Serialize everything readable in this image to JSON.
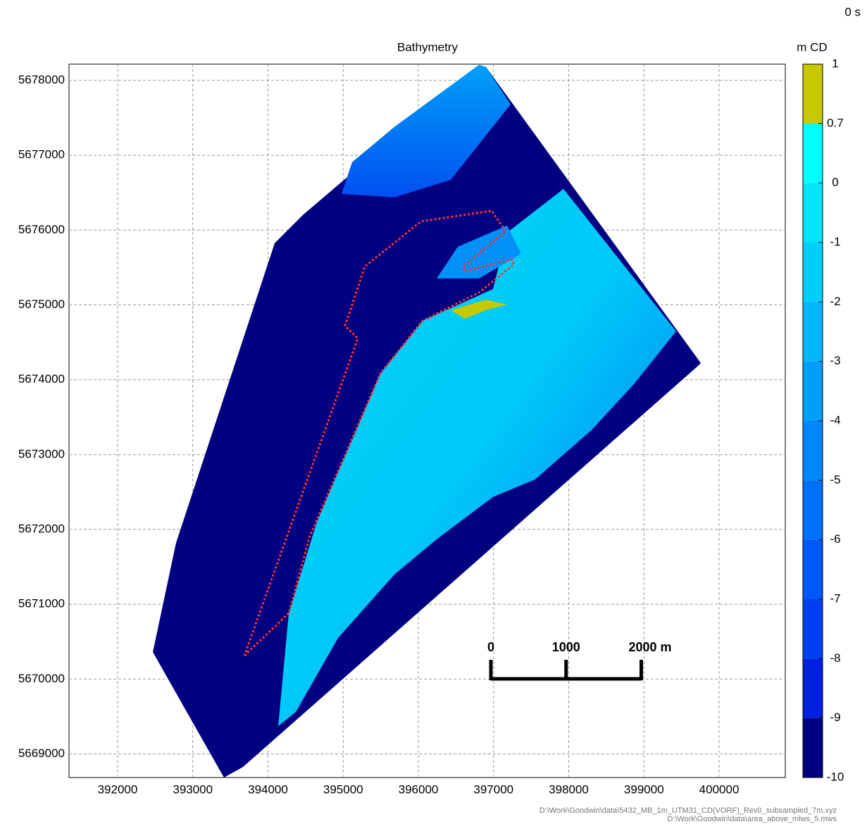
{
  "title": "Bathymetry",
  "time": "0 s",
  "x_axis": {
    "xlim": [
      391354,
      400880
    ],
    "xticks": [
      392000,
      393000,
      394000,
      395000,
      396000,
      397000,
      398000,
      399000,
      400000
    ]
  },
  "y_axis": {
    "ylim": [
      5668684,
      5678217
    ],
    "yticks": [
      5669000,
      5670000,
      5671000,
      5672000,
      5673000,
      5674000,
      5675000,
      5676000,
      5677000,
      5678000
    ]
  },
  "colorbar": {
    "label": "m CD",
    "ticks": [
      1,
      0.7,
      0,
      -1,
      -2,
      -3,
      -4,
      -5,
      -6,
      -7,
      -8,
      -9,
      -10
    ],
    "colors": [
      "#c8c800",
      "#00ffff",
      "#00e6f8",
      "#00d0f8",
      "#00b8f8",
      "#00a0f8",
      "#0088f8",
      "#0070f8",
      "#0058f8",
      "#0040f0",
      "#0020e0",
      "#000080"
    ]
  },
  "scale_bar": {
    "ticks": [
      0,
      1000,
      {
        "value": 2000,
        "label": "2000 m"
      }
    ]
  },
  "footer": [
    "D:\\Work\\Goodwin\\data\\5432_MB_1m_UTM31_CD(VORF)_Rev0_subsampled_7m.xyz",
    "D:\\Work\\Goodwin\\data\\area_above_mlws_5.mws"
  ]
}
